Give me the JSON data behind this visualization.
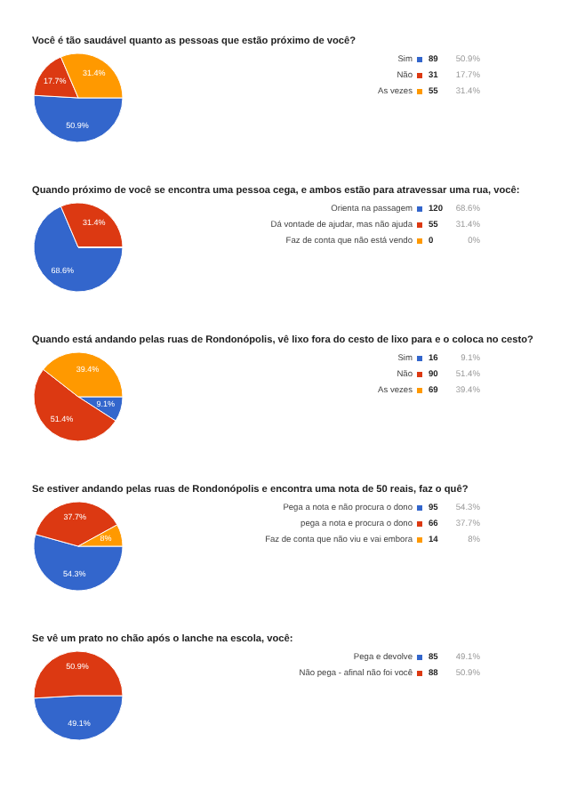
{
  "chart_data": [
    {
      "type": "pie",
      "title": "Você é tão saudável quanto as pessoas que estão próximo de você?",
      "categories": [
        "Sim",
        "Não",
        "As vezes"
      ],
      "values": [
        50.9,
        17.7,
        31.4
      ],
      "colors": [
        "#3366cc",
        "#dc3912",
        "#ff9900"
      ],
      "value_labels": [
        "50.9%",
        "17.7%",
        "31.4%"
      ],
      "annotations": [
        "89",
        "31",
        "55"
      ],
      "legend": "right"
    },
    {
      "type": "pie",
      "title": "Quando próximo de você se encontra uma pessoa cega, e ambos estão para atravessar uma rua, você:",
      "categories": [
        "Orienta na passagem",
        "Dá vontade de ajudar, mas não ajuda",
        "Faz de conta que não está vendo"
      ],
      "values": [
        68.6,
        31.4,
        0
      ],
      "colors": [
        "#3366cc",
        "#dc3912",
        "#ff9900"
      ],
      "value_labels": [
        "68.6%",
        "31.4%",
        "0%"
      ],
      "annotations": [
        "120",
        "55",
        "0"
      ],
      "legend": "right"
    },
    {
      "type": "pie",
      "title": "Quando está andando pelas ruas de Rondonópolis, vê lixo fora do cesto de lixo para e o coloca no cesto?",
      "categories": [
        "Sim",
        "Não",
        "As vezes"
      ],
      "values": [
        9.1,
        51.4,
        39.4
      ],
      "colors": [
        "#3366cc",
        "#dc3912",
        "#ff9900"
      ],
      "value_labels": [
        "9.1%",
        "51.4%",
        "39.4%"
      ],
      "annotations": [
        "16",
        "90",
        "69"
      ],
      "legend": "right"
    },
    {
      "type": "pie",
      "title": "Se estiver andando pelas ruas de Rondonópolis e encontra uma nota de 50 reais, faz o quê?",
      "categories": [
        "Pega a nota e não procura o dono",
        "pega a nota e procura o dono",
        "Faz de conta que não viu e vai embora"
      ],
      "values": [
        54.3,
        37.7,
        8
      ],
      "colors": [
        "#3366cc",
        "#dc3912",
        "#ff9900"
      ],
      "value_labels": [
        "54.3%",
        "37.7%",
        "8%"
      ],
      "annotations": [
        "95",
        "66",
        "14"
      ],
      "legend": "right"
    },
    {
      "type": "pie",
      "title": "Se vê um prato no chão após o lanche na escola, você:",
      "categories": [
        "Pega e devolve",
        "Não pega - afinal não foi você"
      ],
      "values": [
        49.1,
        50.9
      ],
      "colors": [
        "#3366cc",
        "#dc3912"
      ],
      "value_labels": [
        "49.1%",
        "50.9%"
      ],
      "annotations": [
        "85",
        "88"
      ],
      "legend": "right"
    }
  ]
}
